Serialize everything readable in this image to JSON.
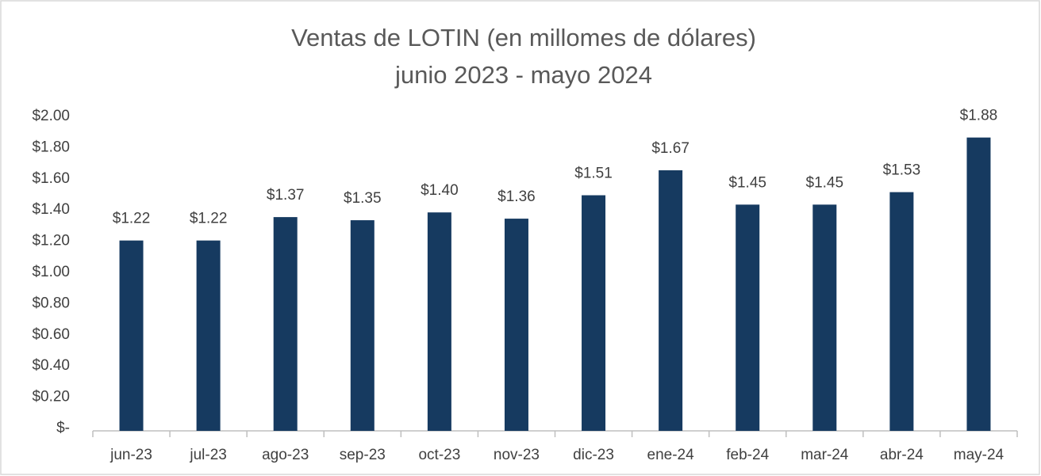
{
  "chart_data": {
    "type": "bar",
    "title": "Ventas de LOTIN  (en millomes de dólares)",
    "subtitle": "junio 2023 - mayo 2024",
    "categories": [
      "jun-23",
      "jul-23",
      "ago-23",
      "sep-23",
      "oct-23",
      "nov-23",
      "dic-23",
      "ene-24",
      "feb-24",
      "mar-24",
      "abr-24",
      "may-24"
    ],
    "values": [
      1.22,
      1.22,
      1.37,
      1.35,
      1.4,
      1.36,
      1.51,
      1.67,
      1.45,
      1.45,
      1.53,
      1.88
    ],
    "value_labels": [
      "$1.22",
      "$1.22",
      "$1.37",
      "$1.35",
      "$1.40",
      "$1.36",
      "$1.51",
      "$1.67",
      "$1.45",
      "$1.45",
      "$1.53",
      "$1.88"
    ],
    "color": "#163a60",
    "ylim": [
      0,
      2
    ],
    "yticks": [
      {
        "value": 0,
        "label": "$-"
      },
      {
        "value": 0.2,
        "label": "$0.20"
      },
      {
        "value": 0.4,
        "label": "$0.40"
      },
      {
        "value": 0.6,
        "label": "$0.60"
      },
      {
        "value": 0.8,
        "label": "$0.80"
      },
      {
        "value": 1,
        "label": "$1.00"
      },
      {
        "value": 1.2,
        "label": "$1.20"
      },
      {
        "value": 1.4,
        "label": "$1.40"
      },
      {
        "value": 1.6,
        "label": "$1.60"
      },
      {
        "value": 1.8,
        "label": "$1.80"
      },
      {
        "value": 2,
        "label": "$2.00"
      }
    ],
    "grid": false
  }
}
